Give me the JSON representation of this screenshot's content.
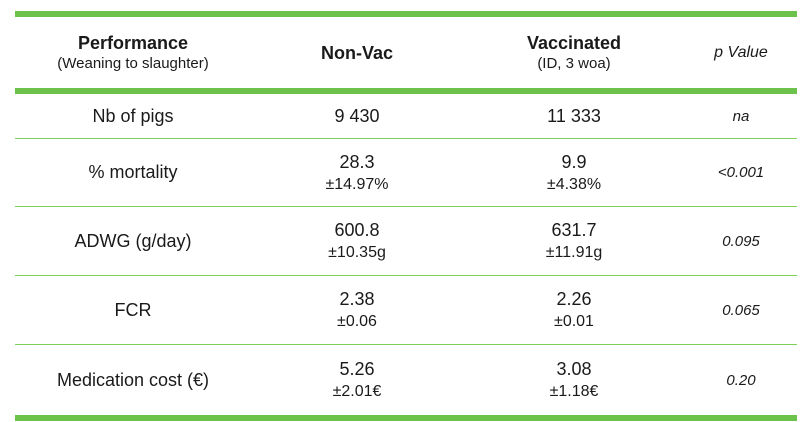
{
  "header": {
    "col1_title": "Performance",
    "col1_sub": "(Weaning to slaughter)",
    "col2_title": "Non-Vac",
    "col3_title": "Vaccinated",
    "col3_sub": "(ID, 3 woa)",
    "col4_title": "p Value"
  },
  "rows": [
    {
      "label": "Nb of pigs",
      "nonvac": "9 430",
      "nonvac_sd": "",
      "vac": "11 333",
      "vac_sd": "",
      "p": "na"
    },
    {
      "label": "% mortality",
      "nonvac": "28.3",
      "nonvac_sd": "±14.97%",
      "vac": "9.9",
      "vac_sd": "±4.38%",
      "p": "<0.001"
    },
    {
      "label": "ADWG (g/day)",
      "nonvac": "600.8",
      "nonvac_sd": "±10.35g",
      "vac": "631.7",
      "vac_sd": "±11.91g",
      "p": "0.095"
    },
    {
      "label": "FCR",
      "nonvac": "2.38",
      "nonvac_sd": "±0.06",
      "vac": "2.26",
      "vac_sd": "±0.01",
      "p": "0.065"
    },
    {
      "label": "Medication cost (€)",
      "nonvac": "5.26",
      "nonvac_sd": "±2.01€",
      "vac": "3.08",
      "vac_sd": "±1.18€",
      "p": "0.20"
    }
  ],
  "colors": {
    "rule": "#6cc24a",
    "thin_rule": "#7dd05a"
  }
}
